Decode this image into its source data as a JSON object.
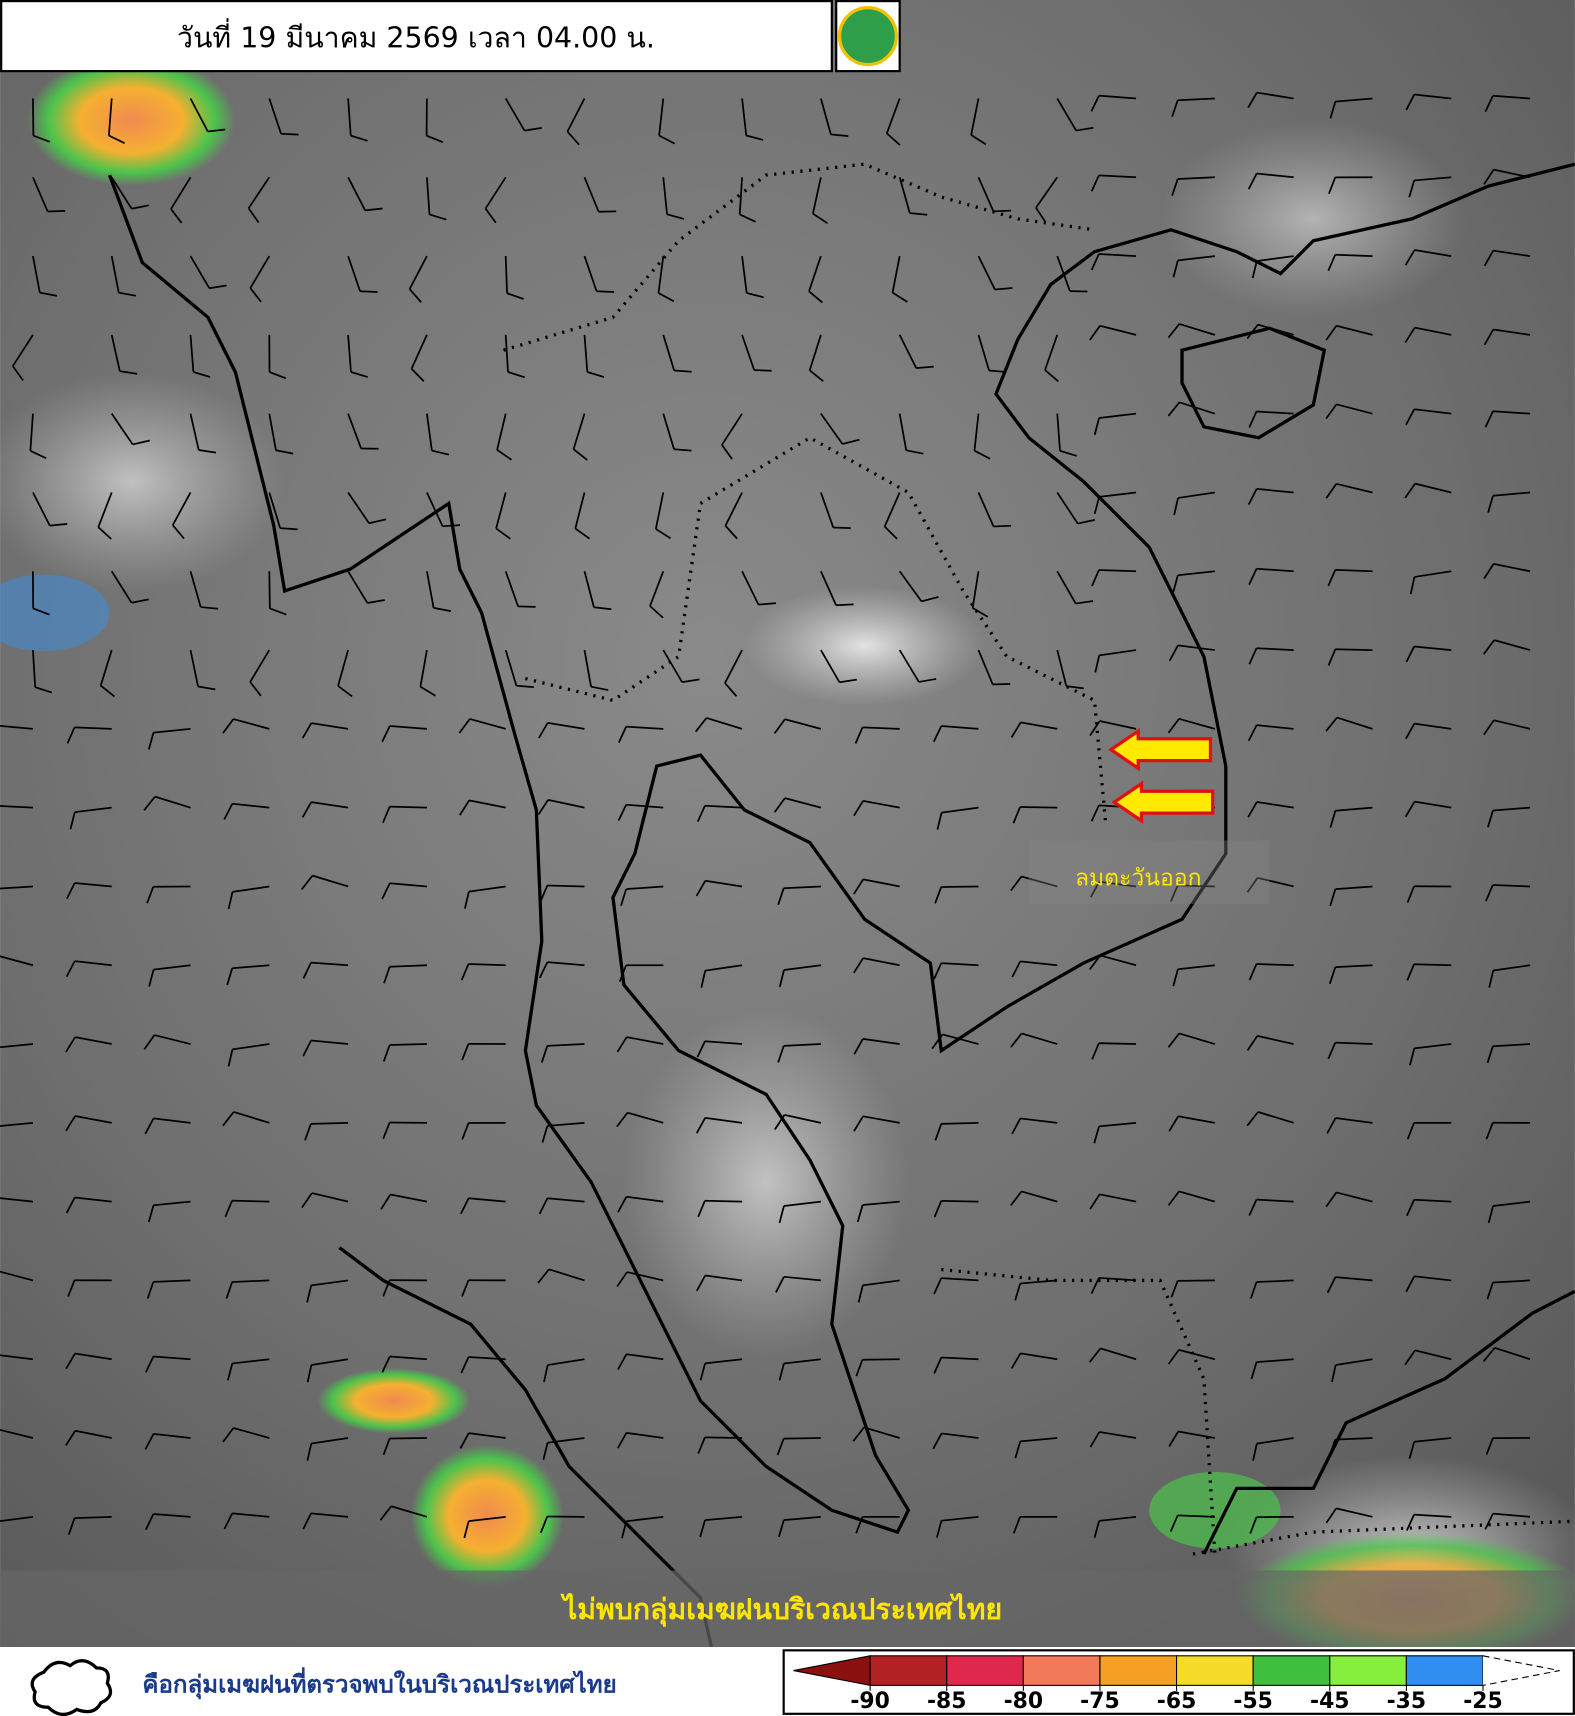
{
  "header": {
    "title": "วันที่ 19 มีนาคม 2569 เวลา 04.00 น."
  },
  "annotation": {
    "wind": "ลมตะวันออก"
  },
  "banner": {
    "text": "ไม่พบกลุ่มเมฆฝนบริเวณประเทศไทย"
  },
  "legend": {
    "cloud_text": "คือกลุ่มเมฆฝนที่ตรวจพบในบริเวณประเทศไทย",
    "scale": {
      "ticks": [
        -90,
        -85,
        -80,
        -75,
        -65,
        -55,
        -45,
        -35,
        -25
      ],
      "colors": [
        "#b22222",
        "#e0284c",
        "#f27a5a",
        "#f5a024",
        "#f5dc28",
        "#3fbf3f",
        "#86ee3c",
        "#2f8ef0"
      ],
      "low_color": "#8b1010"
    }
  }
}
